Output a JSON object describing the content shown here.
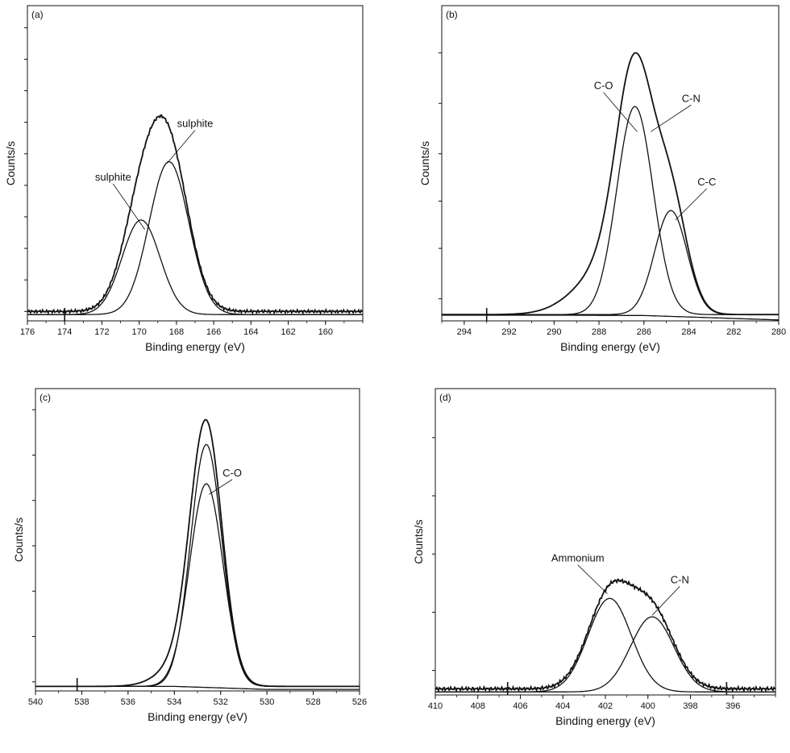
{
  "chart_data": [
    {
      "type": "line",
      "panel_label": "(a)",
      "xlabel": "Binding energy (eV)",
      "ylabel": "Counts/s",
      "xlim": [
        176,
        158
      ],
      "ylim": [
        0,
        1
      ],
      "x_reversed": true,
      "y_tick_labels": false,
      "xticks": [
        176,
        174,
        172,
        170,
        168,
        166,
        164,
        162,
        160
      ],
      "xtick_labels": [
        "176",
        "174",
        "172",
        "170",
        "168",
        "166",
        "164",
        "162",
        "160"
      ],
      "series": [
        {
          "role": "envelope",
          "peaks": [
            {
              "center": 169.9,
              "height": 0.3,
              "fwhm": 2.4
            },
            {
              "center": 168.4,
              "height": 0.485,
              "fwhm": 2.5
            }
          ],
          "baseline": 0.03,
          "noise": 0.005
        },
        {
          "role": "component",
          "peaks": [
            {
              "center": 169.9,
              "height": 0.3,
              "fwhm": 2.4
            }
          ],
          "baseline": 0.02
        },
        {
          "role": "component",
          "peaks": [
            {
              "center": 168.4,
              "height": 0.485,
              "fwhm": 2.5
            }
          ],
          "baseline": 0.02
        }
      ],
      "annotations": [
        {
          "text": "sulphite",
          "label_x": 171.4,
          "label_y": 0.445,
          "point_x": 169.7,
          "point_y": 0.29
        },
        {
          "text": "sulphite",
          "label_x": 167.0,
          "label_y": 0.615,
          "point_x": 168.5,
          "point_y": 0.5
        }
      ]
    },
    {
      "type": "line",
      "panel_label": "(b)",
      "xlabel": "Binding energy (eV)",
      "ylabel": "Counts/s",
      "xlim": [
        295,
        280
      ],
      "ylim": [
        0,
        1
      ],
      "x_reversed": true,
      "y_tick_labels": false,
      "xticks": [
        294,
        292,
        290,
        288,
        286,
        284,
        282,
        280
      ],
      "xtick_labels": [
        "294",
        "292",
        "290",
        "288",
        "286",
        "284",
        "282",
        "280"
      ],
      "series": [
        {
          "role": "envelope",
          "peaks": [
            {
              "center": 286.4,
              "height": 0.66,
              "fwhm": 1.9
            },
            {
              "center": 287.3,
              "height": 0.17,
              "fwhm": 3.5
            },
            {
              "center": 284.8,
              "height": 0.33,
              "fwhm": 1.7
            }
          ],
          "baseline": 0.02,
          "noise": 0
        },
        {
          "role": "component",
          "peaks": [
            {
              "center": 286.4,
              "height": 0.66,
              "fwhm": 1.9
            }
          ],
          "baseline": 0.02
        },
        {
          "role": "component",
          "peaks": [
            {
              "center": 284.8,
              "height": 0.33,
              "fwhm": 1.7
            }
          ],
          "baseline": 0.02
        },
        {
          "role": "baseline",
          "points": [
            [
              295,
              0.018
            ],
            [
              290,
              0.018
            ],
            [
              286,
              0.017
            ],
            [
              283,
              0.01
            ],
            [
              280,
              0.003
            ]
          ]
        }
      ],
      "annotations": [
        {
          "text": "C-O",
          "label_x": 287.8,
          "label_y": 0.735,
          "point_x": 286.3,
          "point_y": 0.6
        },
        {
          "text": "C-N",
          "label_x": 283.9,
          "label_y": 0.695,
          "point_x": 285.7,
          "point_y": 0.6
        },
        {
          "text": "C-C",
          "label_x": 283.2,
          "label_y": 0.43,
          "point_x": 284.6,
          "point_y": 0.32
        }
      ]
    },
    {
      "type": "line",
      "panel_label": "(c)",
      "xlabel": "Binding energy (eV)",
      "ylabel": "Counts/s",
      "xlim": [
        540,
        526
      ],
      "ylim": [
        0,
        1
      ],
      "x_reversed": true,
      "y_tick_labels": false,
      "xticks": [
        540,
        538,
        536,
        534,
        532,
        530,
        528,
        526
      ],
      "xtick_labels": [
        "540",
        "538",
        "536",
        "534",
        "532",
        "530",
        "528",
        "526"
      ],
      "series": [
        {
          "role": "envelope",
          "peaks": [
            {
              "center": 532.62,
              "height": 0.8,
              "fwhm": 1.6
            },
            {
              "center": 533.3,
              "height": 0.1,
              "fwhm": 2.5
            }
          ],
          "baseline": 0.015,
          "noise": 0
        },
        {
          "role": "component",
          "peaks": [
            {
              "center": 532.62,
              "height": 0.8,
              "fwhm": 1.6
            }
          ],
          "baseline": 0.015
        },
        {
          "role": "component",
          "peaks": [
            {
              "center": 532.62,
              "height": 0.67,
              "fwhm": 1.7
            }
          ],
          "baseline": 0.015
        },
        {
          "role": "baseline",
          "points": [
            [
              540,
              0.015
            ],
            [
              534,
              0.015
            ],
            [
              532,
              0.01
            ],
            [
              530,
              0.005
            ],
            [
              526,
              0.005
            ]
          ]
        }
      ],
      "annotations": [
        {
          "text": "C-O",
          "label_x": 531.5,
          "label_y": 0.71,
          "point_x": 532.5,
          "point_y": 0.65
        }
      ]
    },
    {
      "type": "line",
      "panel_label": "(d)",
      "xlabel": "Binding energy (eV)",
      "ylabel": "Counts/s",
      "xlim": [
        410,
        394
      ],
      "ylim": [
        0,
        1
      ],
      "x_reversed": true,
      "y_tick_labels": false,
      "xticks": [
        410,
        408,
        406,
        404,
        402,
        400,
        398,
        396
      ],
      "xtick_labels": [
        "410",
        "408",
        "406",
        "404",
        "402",
        "400",
        "398",
        "396"
      ],
      "series": [
        {
          "role": "envelope",
          "peaks": [
            {
              "center": 401.8,
              "height": 0.305,
              "fwhm": 2.4
            },
            {
              "center": 399.8,
              "height": 0.245,
              "fwhm": 2.4
            }
          ],
          "baseline": 0.02,
          "noise": 0.006
        },
        {
          "role": "component",
          "peaks": [
            {
              "center": 401.8,
              "height": 0.305,
              "fwhm": 2.4
            }
          ],
          "baseline": 0.01
        },
        {
          "role": "component",
          "peaks": [
            {
              "center": 399.8,
              "height": 0.245,
              "fwhm": 2.4
            }
          ],
          "baseline": 0.01
        }
      ],
      "annotations": [
        {
          "text": "Ammonium",
          "label_x": 403.3,
          "label_y": 0.435,
          "point_x": 401.9,
          "point_y": 0.33
        },
        {
          "text": "C-N",
          "label_x": 398.5,
          "label_y": 0.365,
          "point_x": 399.8,
          "point_y": 0.26
        }
      ]
    }
  ]
}
